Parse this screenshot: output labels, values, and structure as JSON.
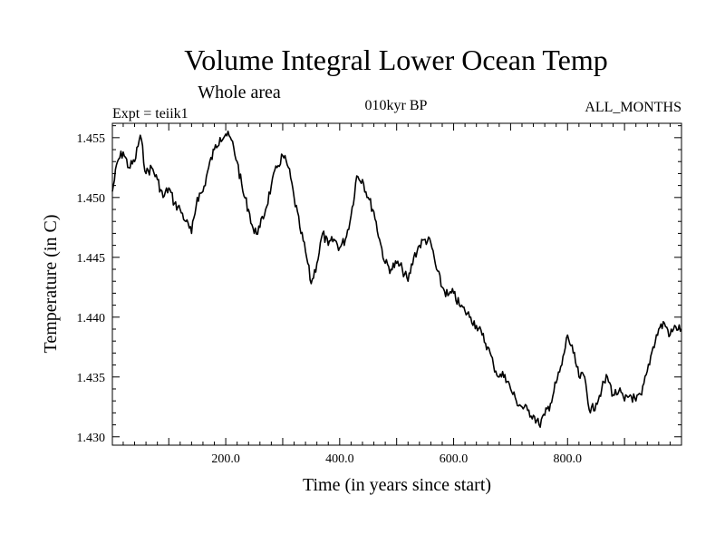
{
  "chart_data": {
    "type": "line",
    "title": "Volume Integral Lower Ocean Temp",
    "subtitle": "Whole area",
    "header_left": "Expt = teiik1",
    "header_center": "010kyr BP",
    "header_right": "ALL_MONTHS",
    "xlabel": "Time (in years since start)",
    "ylabel": "Temperature (in C)",
    "xlim": [
      1,
      1000
    ],
    "ylim": [
      1.4293,
      1.4562
    ],
    "x_ticks": [
      200,
      400,
      600,
      800
    ],
    "x_tick_labels": [
      "200.0",
      "400.0",
      "600.0",
      "800.0"
    ],
    "y_ticks": [
      1.43,
      1.435,
      1.44,
      1.445,
      1.45,
      1.455
    ],
    "y_tick_labels": [
      "1.430",
      "1.435",
      "1.440",
      "1.445",
      "1.450",
      "1.455"
    ],
    "grid": false,
    "series": [
      {
        "x": [
          1,
          10,
          20,
          30,
          40,
          50,
          60,
          70,
          80,
          90,
          100,
          110,
          120,
          130,
          140,
          150,
          160,
          170,
          180,
          190,
          200,
          210,
          220,
          230,
          240,
          250,
          260,
          270,
          280,
          290,
          300,
          310,
          320,
          330,
          340,
          350,
          360,
          370,
          380,
          390,
          400,
          410,
          420,
          430,
          440,
          450,
          460,
          470,
          480,
          490,
          500,
          510,
          520,
          530,
          540,
          550,
          560,
          570,
          580,
          590,
          600,
          610,
          620,
          630,
          640,
          650,
          660,
          670,
          680,
          690,
          700,
          710,
          720,
          730,
          740,
          750,
          760,
          770,
          780,
          790,
          800,
          810,
          820,
          830,
          840,
          850,
          860,
          870,
          880,
          890,
          900,
          910,
          920,
          930,
          940,
          950,
          960,
          970,
          980,
          990,
          1000
        ],
        "y": [
          1.4505,
          1.453,
          1.4538,
          1.4525,
          1.453,
          1.4552,
          1.452,
          1.4525,
          1.4515,
          1.45,
          1.4508,
          1.4495,
          1.449,
          1.448,
          1.447,
          1.45,
          1.4505,
          1.4525,
          1.454,
          1.455,
          1.4553,
          1.4548,
          1.453,
          1.4505,
          1.449,
          1.447,
          1.4475,
          1.449,
          1.451,
          1.4525,
          1.4535,
          1.4525,
          1.45,
          1.4475,
          1.4455,
          1.4428,
          1.4445,
          1.447,
          1.446,
          1.4465,
          1.4458,
          1.4465,
          1.4485,
          1.4518,
          1.4515,
          1.45,
          1.4488,
          1.4465,
          1.4445,
          1.444,
          1.4445,
          1.444,
          1.443,
          1.445,
          1.446,
          1.4465,
          1.4462,
          1.444,
          1.4425,
          1.4418,
          1.442,
          1.441,
          1.4405,
          1.44,
          1.4393,
          1.4385,
          1.4375,
          1.436,
          1.435,
          1.4352,
          1.434,
          1.433,
          1.4325,
          1.4322,
          1.4318,
          1.431,
          1.4318,
          1.4328,
          1.4345,
          1.436,
          1.4385,
          1.437,
          1.435,
          1.435,
          1.432,
          1.4328,
          1.434,
          1.435,
          1.4335,
          1.4338,
          1.433,
          1.4335,
          1.433,
          1.4335,
          1.4355,
          1.4375,
          1.439,
          1.4395,
          1.4385,
          1.4392,
          1.439
        ]
      }
    ]
  }
}
